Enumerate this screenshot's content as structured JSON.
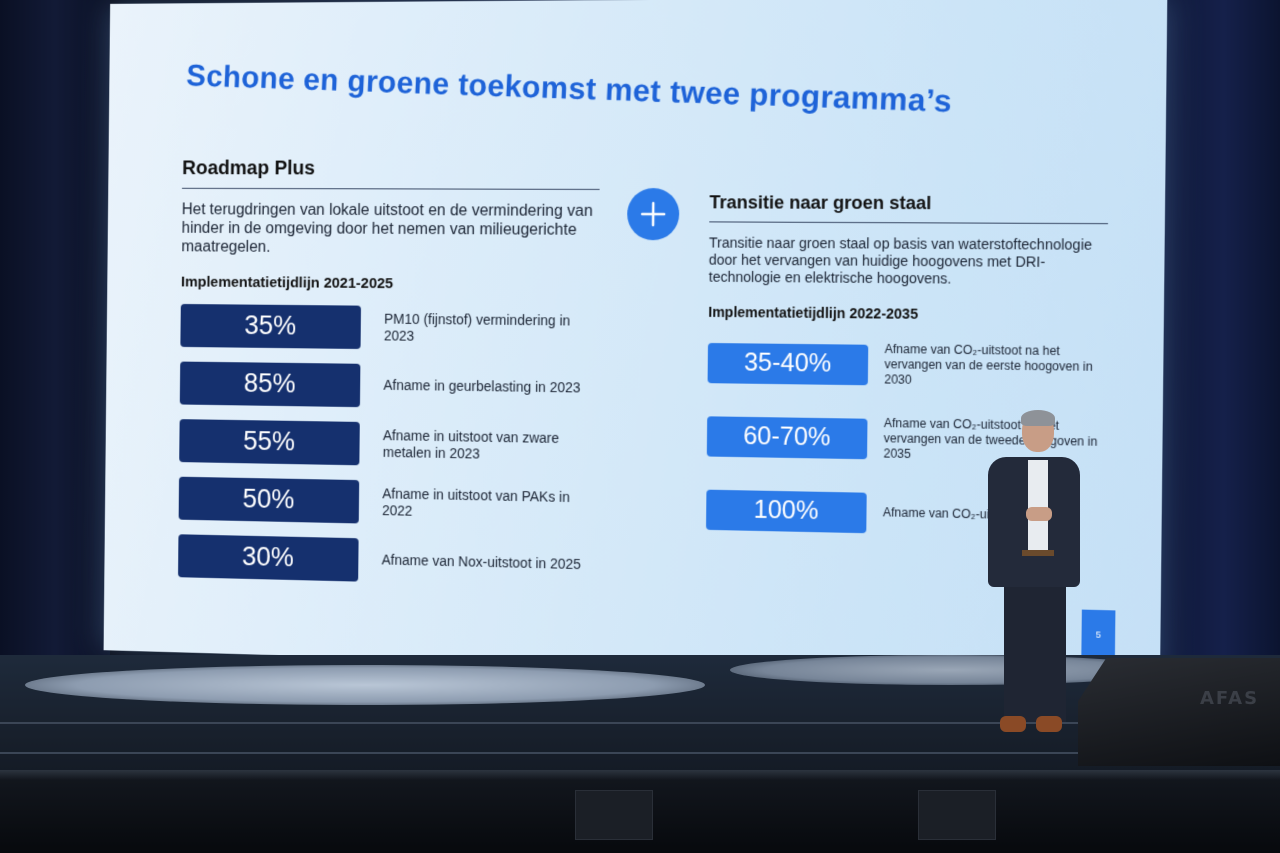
{
  "slide": {
    "title": "Schone en groene toekomst met twee programma’s",
    "page_number": "5",
    "left": {
      "heading": "Roadmap Plus",
      "description": "Het terugdringen van lokale uitstoot en de vermindering van hinder in de omgeving door het nemen van milieugerichte maatregelen.",
      "timeline_heading": "Implementatietijdlijn 2021-2025",
      "items": [
        {
          "value": "35%",
          "label": "PM10 (fijnstof) vermindering in 2023"
        },
        {
          "value": "85%",
          "label": "Afname in geurbelasting in 2023"
        },
        {
          "value": "55%",
          "label": "Afname in uitstoot van zware metalen in 2023"
        },
        {
          "value": "50%",
          "label": "Afname in uitstoot van PAKs in 2022"
        },
        {
          "value": "30%",
          "label": "Afname van Nox-uitstoot in 2025"
        }
      ]
    },
    "right": {
      "heading": "Transitie naar groen staal",
      "description": "Transitie naar groen staal op basis van waterstoftechnologie door het vervangen van huidige hoogovens met DRI-technologie en elektrische hoogovens.",
      "timeline_heading": "Implementatietijdlijn 2022-2035",
      "items": [
        {
          "value": "35-40%",
          "label": "Afname van CO₂-uitstoot na het vervangen van de eerste hoogoven in 2030"
        },
        {
          "value": "60-70%",
          "label": "Afname van CO₂-uitstoot na het vervangen van de tweede hoogoven in 2035"
        },
        {
          "value": "100%",
          "label": "Afname van CO₂-uitstoot in 2045"
        }
      ]
    }
  },
  "stage": {
    "monitor_brand": "AFAS"
  },
  "icons": {
    "plus": "plus-icon"
  },
  "colors": {
    "title_blue": "#1e63d8",
    "dark_navy": "#15306e",
    "accent_blue": "#2b7ae8"
  }
}
